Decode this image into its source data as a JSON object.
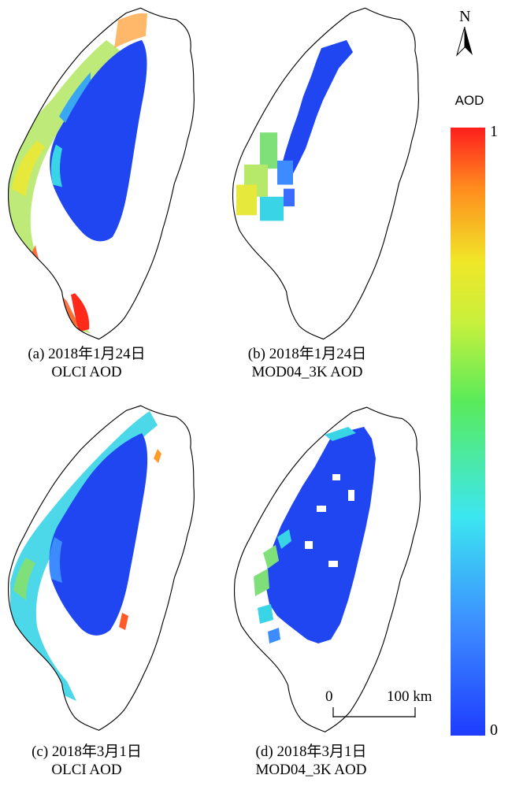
{
  "panels": [
    {
      "date": "(a) 2018年1月24日",
      "product": "OLCI AOD"
    },
    {
      "date": "(b) 2018年1月24日",
      "product": "MOD04_3K AOD"
    },
    {
      "date": "(c) 2018年3月1日",
      "product": "OLCI AOD"
    },
    {
      "date": "(d) 2018年3月1日",
      "product": "MOD04_3K AOD"
    }
  ],
  "legend": {
    "title": "AOD",
    "max_label": "1",
    "min_label": "0",
    "colors": [
      "#1e3cff",
      "#3c8cff",
      "#3ce6f0",
      "#5aeb5a",
      "#c8f03c",
      "#f0e628",
      "#ff8c1e",
      "#ff1e1e"
    ]
  },
  "north_arrow": {
    "label": "N",
    "icon": "north-arrow-icon"
  },
  "scale_bar": {
    "start_label": "0",
    "end_label": "100 km"
  },
  "colors": {
    "low_aod_blue": "#1f46f0",
    "medium_aod_cyan": "#39d4e6",
    "green": "#7fe07a",
    "yellow": "#e6e83c",
    "high_aod_red": "#ff2a1a"
  }
}
